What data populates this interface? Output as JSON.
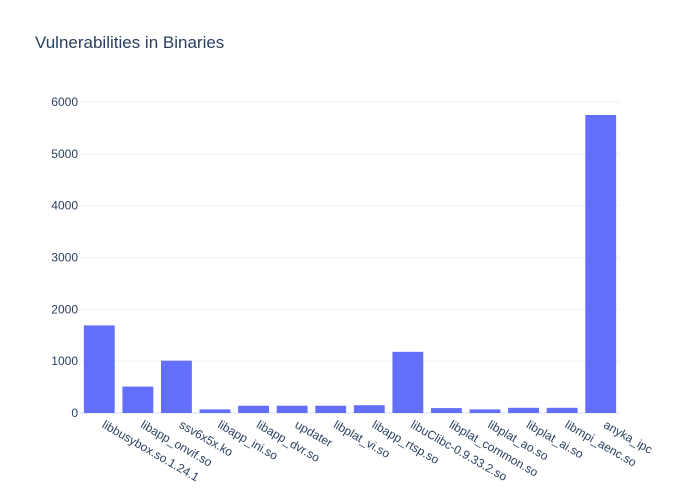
{
  "chart_data": {
    "type": "bar",
    "title": "Vulnerabilities in Binaries",
    "xlabel": "",
    "ylabel": "",
    "categories": [
      "libbusybox.so.1.24.1",
      "libapp_onvif.so",
      "ssv6x5x.ko",
      "libapp_ini.so",
      "libapp_dvr.so",
      "updater",
      "libplat_vi.so",
      "libapp_rtsp.so",
      "libuClibc-0.9.33.2.so",
      "libplat_common.so",
      "libplat_ao.so",
      "libplat_ai.so",
      "libmpi_aenc.so",
      "anyka_ipc"
    ],
    "values": [
      1690,
      510,
      1010,
      70,
      140,
      140,
      140,
      150,
      1180,
      95,
      70,
      100,
      100,
      5750
    ],
    "ylim": [
      0,
      6000
    ],
    "yticks": [
      0,
      1000,
      2000,
      3000,
      4000,
      5000,
      6000
    ],
    "ytick_labels": [
      "0",
      "1000",
      "2000",
      "3000",
      "4000",
      "5000",
      "6000"
    ],
    "grid": true,
    "legend": "none",
    "bar_color": "#636efa"
  }
}
